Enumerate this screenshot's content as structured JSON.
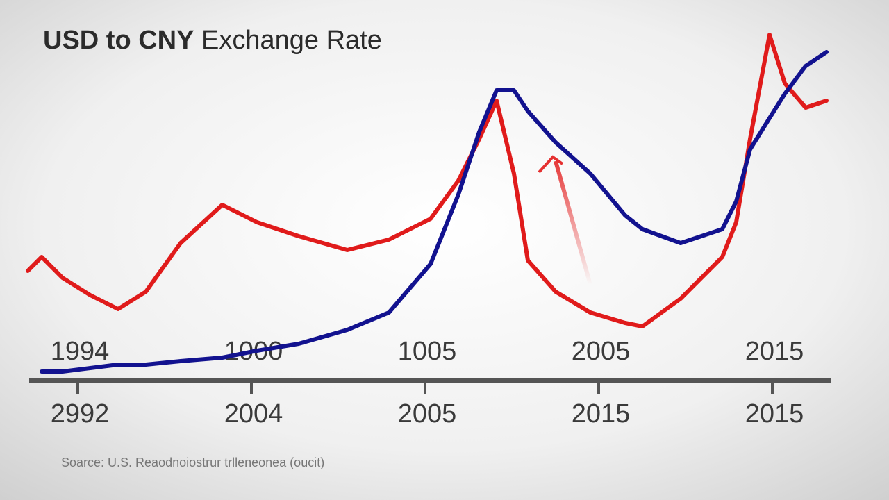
{
  "chart_data": {
    "type": "line",
    "title_bold": "USD to CNY",
    "title_rest": "Exchange Rate",
    "source": "Soarce: U.S. Reaodnoiostrur trlleneonea (oucit)",
    "categories_top": [
      "1994",
      "1000",
      "1005",
      "2005",
      "2015"
    ],
    "categories": [
      "2992",
      "2004",
      "2005",
      "2015",
      "2015"
    ],
    "x": [
      40,
      60,
      90,
      130,
      170,
      210,
      260,
      320,
      370,
      430,
      500,
      560,
      620,
      660,
      690,
      715,
      740,
      760,
      800,
      850,
      900,
      925,
      980,
      1040,
      1060,
      1080,
      1108,
      1130,
      1160,
      1190
    ],
    "xlim": [
      40,
      1190
    ],
    "ylim": [
      0,
      100
    ],
    "series": [
      {
        "color": "#e01b1b",
        "values": [
          31,
          35,
          29,
          24,
          20,
          25,
          39,
          50,
          45,
          41,
          37,
          40,
          46,
          57,
          69,
          80,
          59,
          34,
          25,
          19,
          16,
          15,
          23,
          35,
          45,
          69,
          99,
          85,
          78,
          80
        ]
      },
      {
        "color": "#12128f",
        "values": [
          null,
          2,
          2,
          3,
          4,
          4,
          5,
          6,
          8,
          10,
          14,
          19,
          33,
          53,
          71,
          83,
          83,
          77,
          68,
          59,
          47,
          43,
          39,
          43,
          51,
          66,
          75,
          82,
          90,
          94
        ]
      }
    ]
  }
}
